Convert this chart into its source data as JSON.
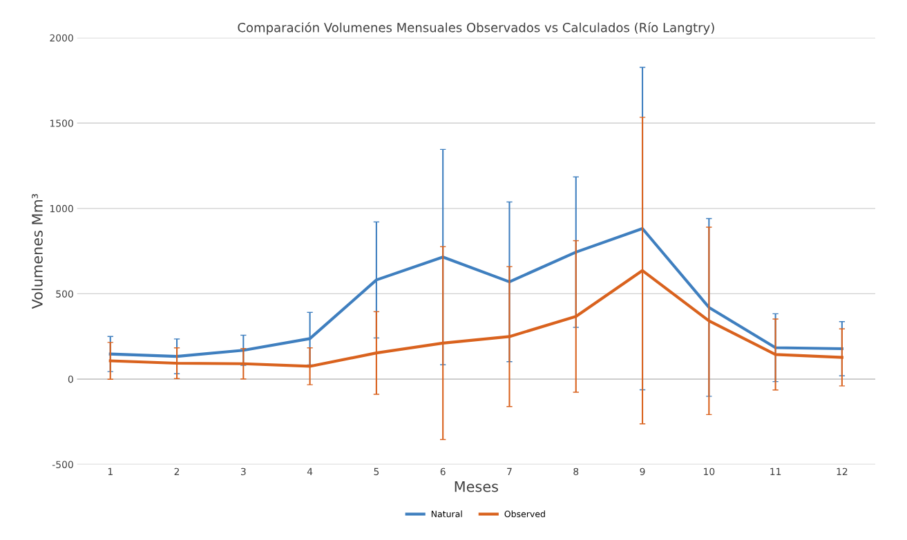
{
  "chart_data": {
    "type": "line",
    "title": "Comparación Volumenes Mensuales Observados vs Calculados (Río Langtry)",
    "xlabel": "Meses",
    "ylabel": "Volumenes Mm³",
    "categories": [
      "1",
      "2",
      "3",
      "4",
      "5",
      "6",
      "7",
      "8",
      "9",
      "10",
      "11",
      "12"
    ],
    "series": [
      {
        "name": "Natural",
        "color": "#3f7fbf",
        "values": [
          147,
          133,
          169,
          237,
          581,
          715,
          570,
          744,
          882,
          420,
          184,
          178
        ],
        "errors": [
          103,
          102,
          88,
          154,
          340,
          631,
          468,
          441,
          945,
          521,
          199,
          159
        ]
      },
      {
        "name": "Observed",
        "color": "#d9621e",
        "values": [
          107,
          93,
          90,
          75,
          153,
          211,
          249,
          367,
          636,
          341,
          144,
          127
        ],
        "errors": [
          108,
          90,
          89,
          108,
          242,
          565,
          410,
          444,
          898,
          549,
          208,
          167
        ]
      }
    ],
    "ylim": [
      -500,
      2000
    ],
    "yticks": [
      -500,
      0,
      500,
      1000,
      1500,
      2000
    ],
    "grid": "y",
    "legend": "bottom",
    "marker": "none",
    "line_style": "solid"
  }
}
